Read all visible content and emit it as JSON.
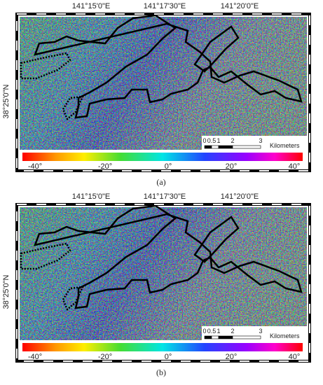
{
  "panels": [
    {
      "label": "(a)",
      "lon_labels": [
        "141°15'0\"E",
        "141°17'30\"E",
        "141°20'0\"E"
      ],
      "lat_label": "38°25'0\"N",
      "scale_labels": [
        "0",
        "0.5",
        "1",
        "2",
        "3"
      ],
      "scale_unit": "Kilometers",
      "colorbar_labels": [
        "-40°",
        "-20°",
        "0°",
        "20°",
        "40°"
      ]
    },
    {
      "label": "(b)",
      "lon_labels": [
        "141°15'0\"E",
        "141°17'30\"E",
        "141°20'0\"E"
      ],
      "lat_label": "38°25'0\"N",
      "scale_labels": [
        "0",
        "0.5",
        "1",
        "2",
        "3"
      ],
      "scale_unit": "Kilometers",
      "colorbar_labels": [
        "-40°",
        "-20°",
        "0°",
        "20°",
        "40°"
      ]
    }
  ]
}
